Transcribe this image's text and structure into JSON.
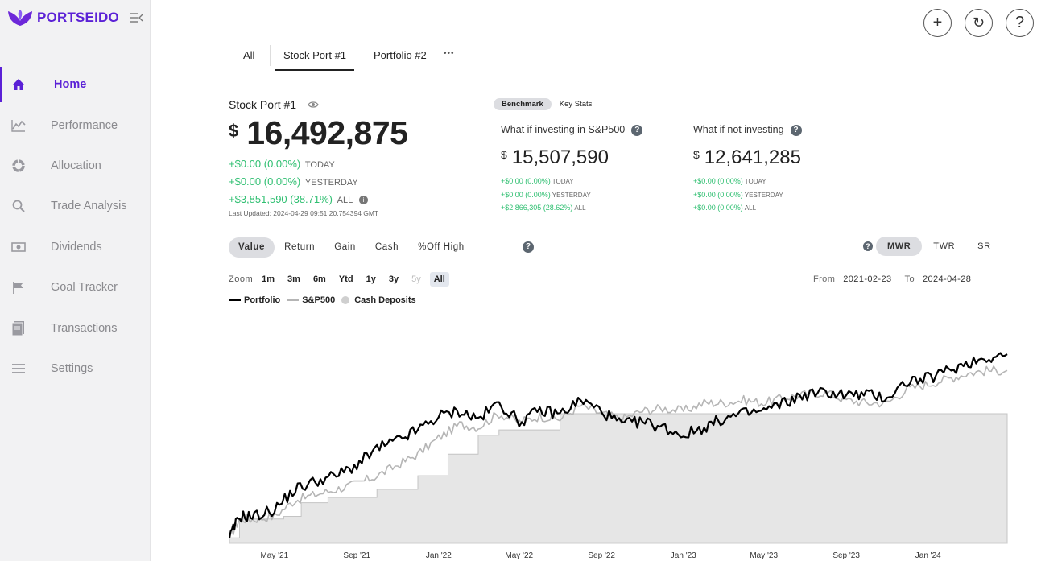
{
  "app": {
    "brand": "PORTSEIDO",
    "brand_color": "#5b21d6"
  },
  "sidebar": {
    "items": [
      {
        "label": "Home",
        "icon": "home-icon",
        "active": true
      },
      {
        "label": "Performance",
        "icon": "chart-line-icon"
      },
      {
        "label": "Allocation",
        "icon": "pie-chart-icon"
      },
      {
        "label": "Trade Analysis",
        "icon": "search-icon"
      },
      {
        "label": "Dividends",
        "icon": "cash-icon"
      },
      {
        "label": "Goal Tracker",
        "icon": "flag-icon"
      },
      {
        "label": "Transactions",
        "icon": "document-icon"
      },
      {
        "label": "Settings",
        "icon": "menu-icon"
      }
    ]
  },
  "header": {
    "buttons": [
      {
        "label": "+",
        "icon": "plus-icon"
      },
      {
        "label": "↻",
        "icon": "refresh-icon"
      },
      {
        "label": "?",
        "icon": "help-icon"
      }
    ]
  },
  "tabs": {
    "items": [
      "All",
      "Stock Port #1",
      "Portfolio #2",
      "•••"
    ],
    "active": "Stock Port #1"
  },
  "portfolio": {
    "name": "Stock Port #1",
    "currency": "$",
    "value": "16,492,875",
    "today": "+$0.00 (0.00%)",
    "today_label": "TODAY",
    "yesterday": "+$0.00 (0.00%)",
    "yesterday_label": "YESTERDAY",
    "all": "+$3,851,590 (38.71%)",
    "all_label": "ALL",
    "last_updated": "Last Updated: 2024-04-29 09:51:20.754394 GMT"
  },
  "benchmark": {
    "toggle": [
      "Benchmark",
      "Key Stats"
    ],
    "sp500": {
      "title": "What if investing in S&P500",
      "currency": "$",
      "value": "15,507,590",
      "today": "+$0.00 (0.00%)",
      "today_label": "TODAY",
      "yesterday": "+$0.00 (0.00%)",
      "yesterday_label": "YESTERDAY",
      "all": "+$2,866,305 (28.62%)",
      "all_label": "ALL"
    },
    "notinvesting": {
      "title": "What if not investing",
      "currency": "$",
      "value": "12,641,285",
      "today": "+$0.00 (0.00%)",
      "today_label": "TODAY",
      "yesterday": "+$0.00 (0.00%)",
      "yesterday_label": "YESTERDAY",
      "all": "+$0.00 (0.00%)",
      "all_label": "ALL"
    }
  },
  "chart_controls": {
    "metrics": [
      "Value",
      "Return",
      "Gain",
      "Cash",
      "%Off High"
    ],
    "active_metric": "Value",
    "return_types": [
      "MWR",
      "TWR",
      "SR"
    ],
    "active_return": "MWR",
    "zoom_label": "Zoom",
    "zoom": [
      "1m",
      "3m",
      "6m",
      "Ytd",
      "1y",
      "3y",
      "5y",
      "All"
    ],
    "zoom_disabled": [
      "5y"
    ],
    "zoom_active": "All",
    "from_label": "From",
    "from": "2021-02-23",
    "to_label": "To",
    "to": "2024-04-28"
  },
  "chart_data": {
    "type": "line",
    "legend": [
      {
        "name": "Portfolio",
        "color": "#000000",
        "kind": "line"
      },
      {
        "name": "S&P500",
        "color": "#b5b5b5",
        "kind": "line"
      },
      {
        "name": "Cash Deposits",
        "color": "#cfcfcf",
        "kind": "area"
      }
    ],
    "x_ticks": [
      "May '21",
      "Sep '21",
      "Jan '22",
      "May '22",
      "Sep '22",
      "Jan '23",
      "May '23",
      "Sep '23",
      "Jan '24"
    ],
    "x_range": [
      "2021-02-23",
      "2024-04-28"
    ],
    "series": [
      {
        "name": "Portfolio",
        "x": [
          "2021-02-23",
          "2021-03-10",
          "2021-04-01",
          "2021-05-01",
          "2021-06-01",
          "2021-07-01",
          "2021-08-01",
          "2021-09-01",
          "2021-10-01",
          "2021-11-01",
          "2021-12-01",
          "2022-01-01",
          "2022-02-01",
          "2022-03-01",
          "2022-04-01",
          "2022-05-01",
          "2022-06-01",
          "2022-07-01",
          "2022-08-01",
          "2022-09-01",
          "2022-10-01",
          "2022-11-01",
          "2022-12-01",
          "2023-01-01",
          "2023-02-01",
          "2023-03-01",
          "2023-04-01",
          "2023-05-01",
          "2023-06-01",
          "2023-07-01",
          "2023-08-01",
          "2023-09-01",
          "2023-10-01",
          "2023-11-01",
          "2023-12-01",
          "2024-01-01",
          "2024-02-01",
          "2024-03-01",
          "2024-04-01",
          "2024-04-28"
        ],
        "y": [
          0.2,
          1.0,
          1.0,
          1.25,
          2.0,
          2.3,
          2.5,
          2.9,
          3.5,
          3.8,
          4.2,
          4.7,
          4.9,
          4.6,
          5.2,
          4.5,
          4.9,
          4.8,
          5.3,
          4.9,
          4.4,
          4.5,
          4.3,
          4.0,
          4.3,
          4.6,
          4.8,
          4.9,
          5.2,
          5.5,
          5.6,
          5.5,
          5.5,
          5.4,
          6.0,
          6.1,
          6.4,
          6.7,
          6.9,
          7.0
        ]
      },
      {
        "name": "S&P500",
        "x": [
          "2021-02-23",
          "2021-03-10",
          "2021-04-01",
          "2021-05-01",
          "2021-06-01",
          "2021-07-01",
          "2021-08-01",
          "2021-09-01",
          "2021-10-01",
          "2021-11-01",
          "2021-12-01",
          "2022-01-01",
          "2022-02-01",
          "2022-03-01",
          "2022-04-01",
          "2022-05-01",
          "2022-06-01",
          "2022-07-01",
          "2022-08-01",
          "2022-09-01",
          "2022-10-01",
          "2022-11-01",
          "2022-12-01",
          "2023-01-01",
          "2023-02-01",
          "2023-03-01",
          "2023-04-01",
          "2023-05-01",
          "2023-06-01",
          "2023-07-01",
          "2023-08-01",
          "2023-09-01",
          "2023-10-01",
          "2023-11-01",
          "2023-12-01",
          "2024-01-01",
          "2024-02-01",
          "2024-03-01",
          "2024-04-01",
          "2024-04-28"
        ],
        "y": [
          0.2,
          0.9,
          0.9,
          1.0,
          1.6,
          1.8,
          2.0,
          2.2,
          2.5,
          2.9,
          3.3,
          3.9,
          4.4,
          4.3,
          4.8,
          4.5,
          4.7,
          4.6,
          5.1,
          4.8,
          4.6,
          4.9,
          5.0,
          4.9,
          5.2,
          5.2,
          5.3,
          5.2,
          5.4,
          5.5,
          5.6,
          5.3,
          5.2,
          5.2,
          5.7,
          5.9,
          6.1,
          6.3,
          6.4,
          6.4
        ]
      },
      {
        "name": "Cash Deposits",
        "x": [
          "2021-02-23",
          "2021-03-10",
          "2021-04-10",
          "2021-05-15",
          "2021-06-10",
          "2021-07-20",
          "2021-10-01",
          "2021-12-01",
          "2022-01-15",
          "2022-03-01",
          "2022-04-01",
          "2022-06-01",
          "2022-07-01",
          "2024-04-28"
        ],
        "y": [
          0.2,
          0.9,
          0.9,
          1.0,
          1.5,
          1.7,
          2.0,
          2.5,
          3.3,
          4.0,
          4.2,
          4.2,
          4.8,
          4.8
        ]
      }
    ]
  }
}
